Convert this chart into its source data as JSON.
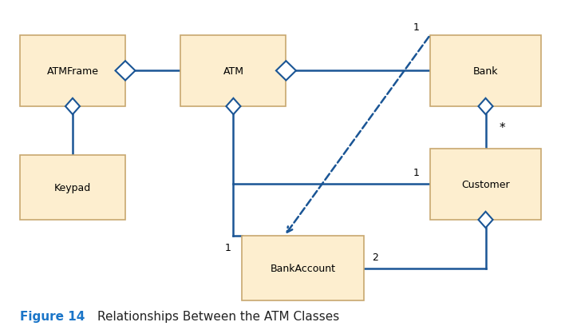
{
  "background_color": "#ffffff",
  "box_facecolor": "#fdeecf",
  "box_edgecolor": "#c8a870",
  "line_color": "#1a5595",
  "boxes": {
    "ATMFrame": [
      0.03,
      0.68,
      0.19,
      0.22
    ],
    "ATM": [
      0.32,
      0.68,
      0.19,
      0.22
    ],
    "Bank": [
      0.77,
      0.68,
      0.2,
      0.22
    ],
    "Keypad": [
      0.03,
      0.33,
      0.19,
      0.2
    ],
    "Customer": [
      0.77,
      0.33,
      0.2,
      0.22
    ],
    "BankAccount": [
      0.43,
      0.08,
      0.22,
      0.2
    ]
  },
  "box_labels": {
    "ATMFrame": "ATMFrame",
    "ATM": "ATM",
    "Bank": "Bank",
    "Keypad": "Keypad",
    "Customer": "Customer",
    "BankAccount": "BankAccount"
  },
  "title": "Figure 14",
  "subtitle": "   Relationships Between the ATM Classes",
  "title_color": "#1a75c8",
  "subtitle_color": "#222222"
}
